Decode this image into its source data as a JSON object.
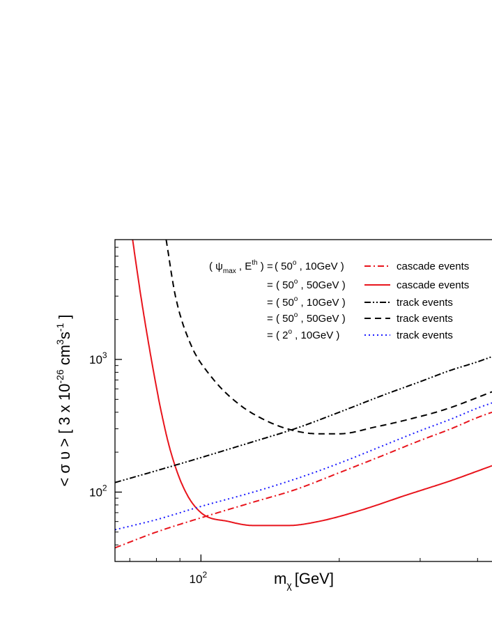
{
  "chart_data": {
    "type": "line",
    "scale": {
      "x": "log",
      "y": "log"
    },
    "xlim": [
      65,
      430
    ],
    "ylim": [
      30,
      8000
    ],
    "xlabel": {
      "main": "m",
      "sub": "χ",
      "unit": "[GeV]"
    },
    "ylabel": {
      "main": "< σ υ > [ 3 x 10",
      "exp1": "-26",
      "mid": " cm",
      "exp2": "3",
      "mid2": "s",
      "exp3": "-1",
      "end": " ]"
    },
    "x_ticks": [
      {
        "value": 100,
        "base": "10",
        "exp": "2"
      }
    ],
    "y_ticks": [
      {
        "value": 100,
        "base": "10",
        "exp": "2"
      },
      {
        "value": 1000,
        "base": "10",
        "exp": "3"
      }
    ],
    "legend": {
      "header": {
        "prefix": "( ψ",
        "sub": "max",
        "mid": " , E",
        "sup": "th",
        "suffix": " ) ="
      },
      "placement": "top-right"
    },
    "series": [
      {
        "params": {
          "angle": "50",
          "energy": "10GeV"
        },
        "event_type": "cascade events",
        "color": "#e8141c",
        "dash": "dash-dot",
        "x": [
          65,
          80,
          100,
          130,
          160,
          200,
          250,
          300,
          350,
          400,
          430
        ],
        "y": [
          38,
          50,
          64,
          84,
          104,
          140,
          190,
          245,
          300,
          365,
          400
        ]
      },
      {
        "params": {
          "angle": "50",
          "energy": "50GeV"
        },
        "event_type": "cascade events",
        "color": "#e8141c",
        "dash": "solid",
        "x": [
          71,
          74,
          78,
          82,
          86,
          92,
          100,
          115,
          130,
          155,
          180,
          220,
          280,
          350,
          430
        ],
        "y": [
          8000,
          3000,
          1000,
          400,
          200,
          105,
          70,
          60,
          56,
          56,
          60,
          72,
          95,
          122,
          158
        ]
      },
      {
        "params": {
          "angle": "50",
          "energy": "10GeV"
        },
        "event_type": "track events",
        "color": "#000000",
        "dash": "dash-dot-dot",
        "x": [
          65,
          80,
          100,
          130,
          160,
          200,
          250,
          300,
          350,
          400,
          430
        ],
        "y": [
          118,
          145,
          182,
          240,
          300,
          400,
          540,
          680,
          830,
          960,
          1050
        ]
      },
      {
        "params": {
          "angle": "50",
          "energy": "50GeV"
        },
        "event_type": "track events",
        "color": "#000000",
        "dash": "dash",
        "x": [
          84,
          88,
          95,
          105,
          120,
          140,
          160,
          180,
          200,
          240,
          280,
          340,
          430
        ],
        "y": [
          8000,
          3000,
          1300,
          750,
          470,
          340,
          290,
          275,
          275,
          310,
          350,
          420,
          570
        ]
      },
      {
        "params": {
          "angle": "2",
          "energy": "10GeV"
        },
        "event_type": "track events",
        "color": "#1a1aff",
        "dash": "dot",
        "x": [
          65,
          80,
          100,
          130,
          160,
          200,
          250,
          300,
          350,
          400,
          430
        ],
        "y": [
          52,
          62,
          78,
          100,
          125,
          165,
          225,
          290,
          355,
          430,
          470
        ]
      }
    ]
  }
}
